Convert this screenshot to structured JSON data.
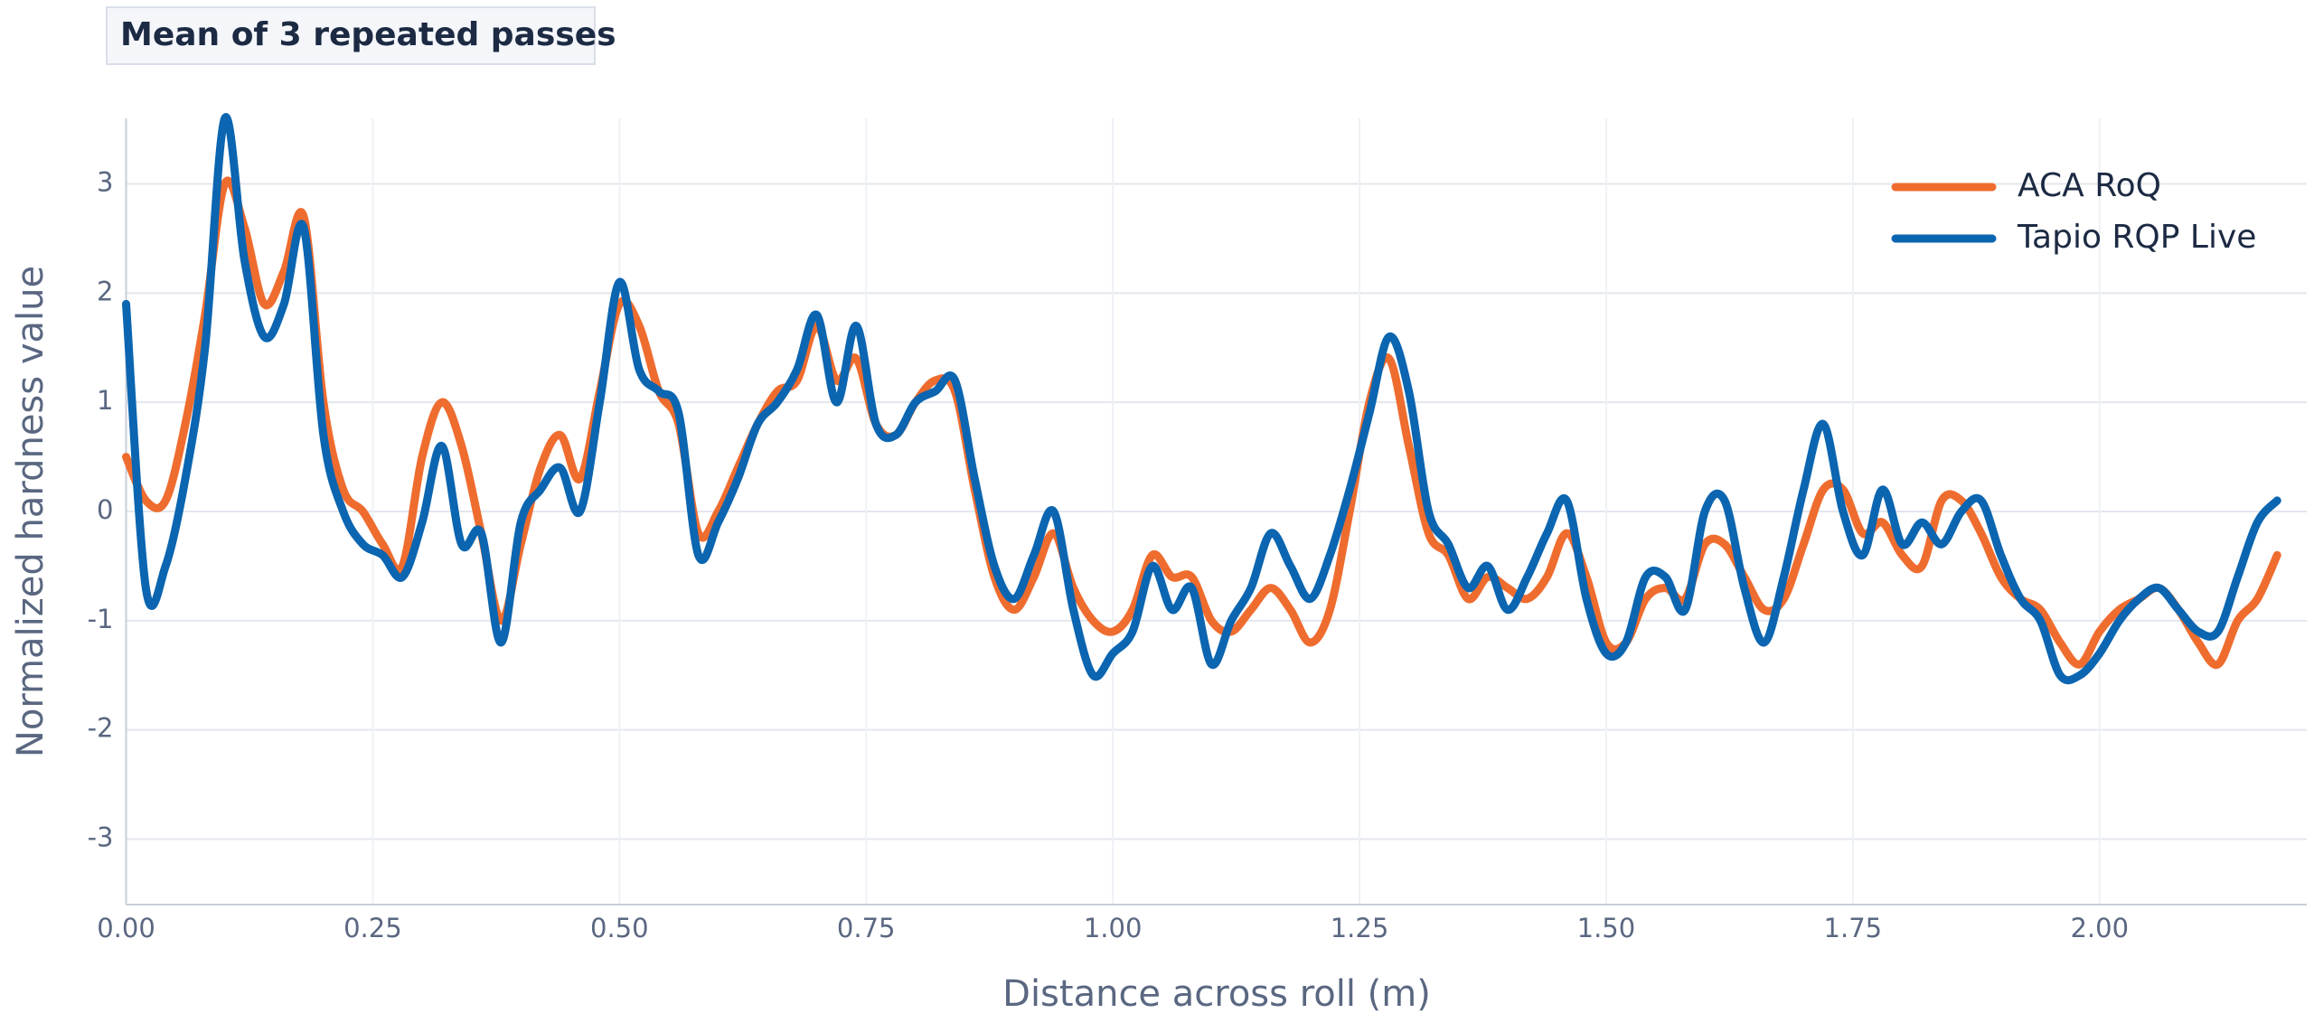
{
  "chart_data": {
    "type": "line",
    "title": "Mean of 3 repeated passes",
    "x_label": "Distance across roll (m)",
    "y_label": "Normalized hardness value",
    "x": [
      0.0,
      0.02,
      0.04,
      0.06,
      0.08,
      0.1,
      0.12,
      0.14,
      0.16,
      0.18,
      0.2,
      0.22,
      0.24,
      0.26,
      0.28,
      0.3,
      0.32,
      0.34,
      0.36,
      0.38,
      0.4,
      0.42,
      0.44,
      0.46,
      0.48,
      0.5,
      0.52,
      0.54,
      0.56,
      0.58,
      0.6,
      0.62,
      0.64,
      0.66,
      0.68,
      0.7,
      0.72,
      0.74,
      0.76,
      0.78,
      0.8,
      0.82,
      0.84,
      0.86,
      0.88,
      0.9,
      0.92,
      0.94,
      0.96,
      0.98,
      1.0,
      1.02,
      1.04,
      1.06,
      1.08,
      1.1,
      1.12,
      1.14,
      1.16,
      1.18,
      1.2,
      1.22,
      1.24,
      1.26,
      1.28,
      1.3,
      1.32,
      1.34,
      1.36,
      1.38,
      1.4,
      1.42,
      1.44,
      1.46,
      1.48,
      1.5,
      1.52,
      1.54,
      1.56,
      1.58,
      1.6,
      1.62,
      1.64,
      1.66,
      1.68,
      1.7,
      1.72,
      1.74,
      1.76,
      1.78,
      1.8,
      1.82,
      1.84,
      1.86,
      1.88,
      1.9,
      1.92,
      1.94,
      1.96,
      1.98,
      2.0,
      2.02,
      2.04,
      2.06,
      2.08,
      2.1,
      2.12,
      2.14,
      2.16,
      2.18
    ],
    "series": [
      {
        "name": "ACA RoQ",
        "color": "#ef6c2f",
        "values": [
          0.5,
          0.1,
          0.1,
          0.8,
          1.8,
          3.0,
          2.6,
          1.9,
          2.2,
          2.7,
          1.0,
          0.2,
          0.0,
          -0.3,
          -0.5,
          0.5,
          1.0,
          0.6,
          -0.2,
          -1.0,
          -0.3,
          0.4,
          0.7,
          0.3,
          1.1,
          1.9,
          1.7,
          1.1,
          0.8,
          -0.2,
          0.0,
          0.4,
          0.8,
          1.1,
          1.2,
          1.7,
          1.2,
          1.4,
          0.8,
          0.7,
          1.0,
          1.2,
          1.1,
          0.2,
          -0.6,
          -0.9,
          -0.6,
          -0.2,
          -0.7,
          -1.0,
          -1.1,
          -0.9,
          -0.4,
          -0.6,
          -0.6,
          -1.0,
          -1.1,
          -0.9,
          -0.7,
          -0.9,
          -1.2,
          -0.9,
          0.0,
          1.0,
          1.4,
          0.6,
          -0.2,
          -0.4,
          -0.8,
          -0.6,
          -0.7,
          -0.8,
          -0.6,
          -0.2,
          -0.6,
          -1.2,
          -1.2,
          -0.8,
          -0.7,
          -0.8,
          -0.3,
          -0.3,
          -0.6,
          -0.9,
          -0.8,
          -0.3,
          0.2,
          0.2,
          -0.2,
          -0.1,
          -0.4,
          -0.5,
          0.1,
          0.1,
          -0.2,
          -0.6,
          -0.8,
          -0.9,
          -1.2,
          -1.4,
          -1.1,
          -0.9,
          -0.8,
          -0.7,
          -0.9,
          -1.2,
          -1.4,
          -1.0,
          -0.8,
          -0.4
        ]
      },
      {
        "name": "Tapio RQP Live",
        "color": "#0b65b0",
        "values": [
          1.9,
          -0.7,
          -0.5,
          0.3,
          1.5,
          3.6,
          2.3,
          1.6,
          1.9,
          2.6,
          0.7,
          0.0,
          -0.3,
          -0.4,
          -0.6,
          -0.1,
          0.6,
          -0.3,
          -0.2,
          -1.2,
          -0.1,
          0.2,
          0.4,
          0.0,
          1.0,
          2.1,
          1.3,
          1.1,
          0.9,
          -0.4,
          -0.1,
          0.3,
          0.8,
          1.0,
          1.3,
          1.8,
          1.0,
          1.7,
          0.8,
          0.7,
          1.0,
          1.1,
          1.2,
          0.3,
          -0.5,
          -0.8,
          -0.4,
          0.0,
          -0.9,
          -1.5,
          -1.3,
          -1.1,
          -0.5,
          -0.9,
          -0.7,
          -1.4,
          -1.0,
          -0.7,
          -0.2,
          -0.5,
          -0.8,
          -0.4,
          0.2,
          0.9,
          1.6,
          1.1,
          0.0,
          -0.3,
          -0.7,
          -0.5,
          -0.9,
          -0.6,
          -0.2,
          0.1,
          -0.8,
          -1.3,
          -1.2,
          -0.6,
          -0.6,
          -0.9,
          0.0,
          0.1,
          -0.7,
          -1.2,
          -0.6,
          0.2,
          0.8,
          0.0,
          -0.4,
          0.2,
          -0.3,
          -0.1,
          -0.3,
          0.0,
          0.1,
          -0.4,
          -0.8,
          -1.0,
          -1.5,
          -1.5,
          -1.3,
          -1.0,
          -0.8,
          -0.7,
          -0.9,
          -1.1,
          -1.1,
          -0.6,
          -0.1,
          0.1
        ]
      }
    ],
    "xlim": [
      0,
      2.21
    ],
    "ylim": [
      -3.6,
      3.6
    ],
    "xticks": [
      {
        "value": 0,
        "label": "0.00"
      },
      {
        "value": 0.25,
        "label": "0.25"
      },
      {
        "value": 0.5,
        "label": "0.50"
      },
      {
        "value": 0.75,
        "label": "0.75"
      },
      {
        "value": 1,
        "label": "1.00"
      },
      {
        "value": 1.25,
        "label": "1.25"
      },
      {
        "value": 1.5,
        "label": "1.50"
      },
      {
        "value": 1.75,
        "label": "1.75"
      },
      {
        "value": 2,
        "label": "2.00"
      }
    ],
    "yticks": [
      -3,
      -2,
      -1,
      0,
      1,
      2,
      3
    ],
    "grid": true,
    "legend": "top-right"
  }
}
